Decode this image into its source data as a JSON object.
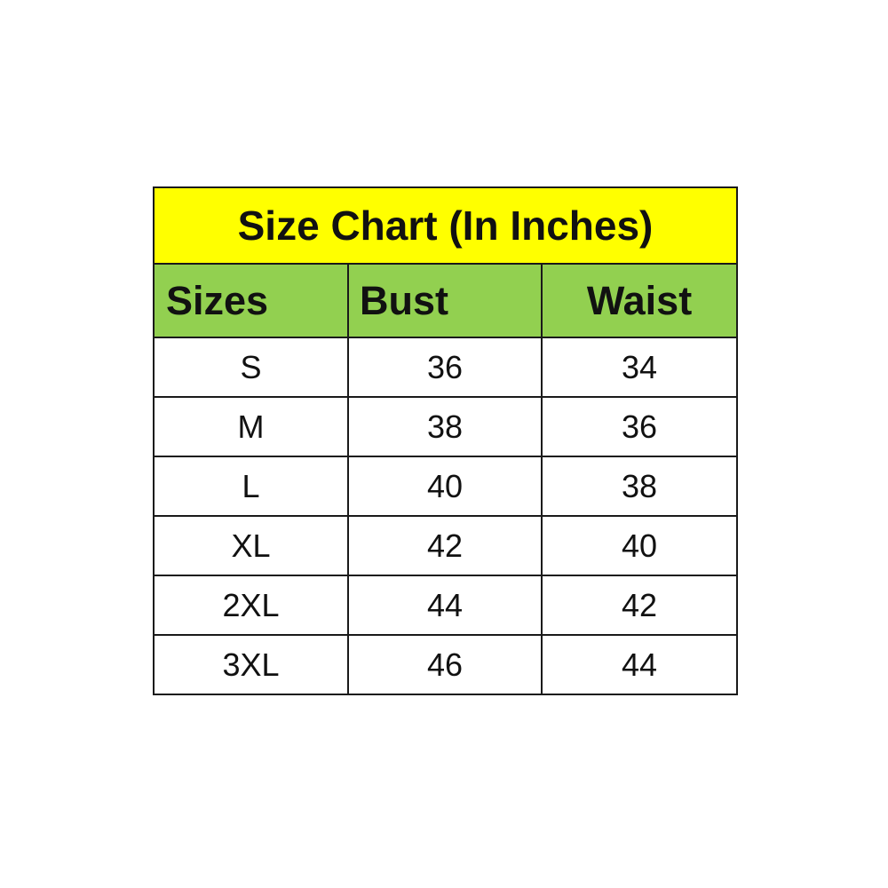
{
  "title": "Size Chart (In Inches)",
  "colors": {
    "title_bg": "#ffff00",
    "header_bg": "#92d050"
  },
  "headers": [
    "Sizes",
    "Bust",
    "Waist"
  ],
  "rows": [
    [
      "S",
      "36",
      "34"
    ],
    [
      "M",
      "38",
      "36"
    ],
    [
      "L",
      "40",
      "38"
    ],
    [
      "XL",
      "42",
      "40"
    ],
    [
      "2XL",
      "44",
      "42"
    ],
    [
      "3XL",
      "46",
      "44"
    ]
  ]
}
